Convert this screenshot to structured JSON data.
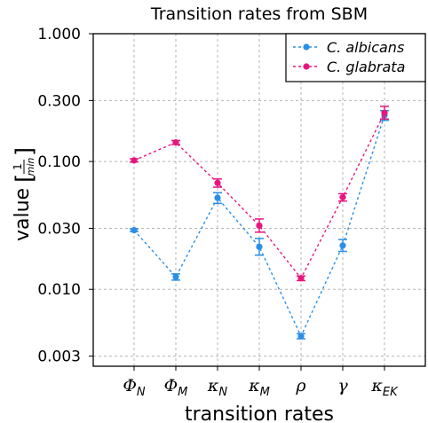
{
  "chart_data": {
    "type": "line",
    "title": "Transition rates from SBM",
    "xlabel": "transition rates",
    "ylabel": "value",
    "ylabel_unit": {
      "numerator": "1",
      "denominator": "min"
    },
    "yscale": "log",
    "ylim": [
      0.0025,
      1.0
    ],
    "yticks": [
      1.0,
      0.3,
      0.1,
      0.03,
      0.01,
      0.003
    ],
    "ytick_labels": [
      "1.000",
      "0.300",
      "0.100",
      "0.030",
      "0.010",
      "0.003"
    ],
    "categories": [
      {
        "base": "Φ",
        "sub": "N"
      },
      {
        "base": "Φ",
        "sub": "M"
      },
      {
        "base": "κ",
        "sub": "N"
      },
      {
        "base": "κ",
        "sub": "M"
      },
      {
        "base": "ρ",
        "sub": ""
      },
      {
        "base": "γ",
        "sub": ""
      },
      {
        "base": "κ",
        "sub": "EK"
      }
    ],
    "grid": true,
    "legend_position": "top-right",
    "series": [
      {
        "name": "C. albicans",
        "color": "#2a8fe6",
        "values": [
          0.029,
          0.0125,
          0.052,
          0.0215,
          0.0043,
          0.022,
          0.23
        ],
        "err_low": [
          0.0283,
          0.0118,
          0.047,
          0.0185,
          0.0041,
          0.0198,
          0.21
        ],
        "err_high": [
          0.0297,
          0.0132,
          0.057,
          0.025,
          0.0045,
          0.0245,
          0.25
        ]
      },
      {
        "name": "C. glabrata",
        "color": "#e8157f",
        "values": [
          0.102,
          0.141,
          0.068,
          0.0315,
          0.0122,
          0.0525,
          0.24
        ],
        "err_low": [
          0.099,
          0.136,
          0.063,
          0.028,
          0.0117,
          0.049,
          0.215
        ],
        "err_high": [
          0.105,
          0.146,
          0.073,
          0.0355,
          0.0127,
          0.056,
          0.27
        ]
      }
    ]
  }
}
